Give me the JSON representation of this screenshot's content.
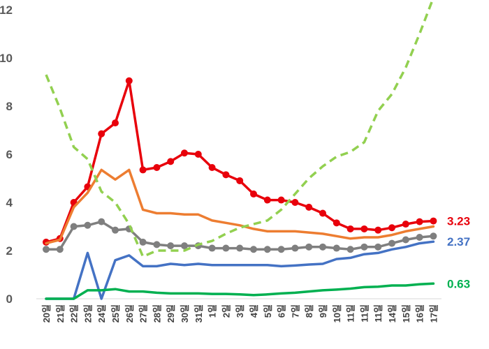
{
  "chart_data": {
    "type": "line",
    "title": "",
    "xlabel": "",
    "ylabel": "",
    "ylim": [
      0,
      12
    ],
    "yticks": [
      "0",
      "2",
      "4",
      "6",
      "8",
      "10",
      "12"
    ],
    "grid": false,
    "legend": "none",
    "categories": [
      "20일",
      "21일",
      "22일",
      "23일",
      "24일",
      "25일",
      "26일",
      "27일",
      "28일",
      "29일",
      "30일",
      "31일",
      "1일",
      "2일",
      "3일",
      "4일",
      "5일",
      "6일",
      "7일",
      "8일",
      "9일",
      "10일",
      "11일",
      "11일",
      "11일",
      "14일",
      "15일",
      "16일",
      "17일"
    ],
    "series": [
      {
        "color": "#e8000b",
        "style": "solid-markers",
        "values": [
          2.35,
          2.5,
          4.0,
          4.65,
          6.85,
          7.3,
          9.05,
          5.35,
          5.45,
          5.7,
          6.05,
          6.0,
          5.45,
          5.15,
          4.9,
          4.35,
          4.1,
          4.1,
          4.0,
          3.8,
          3.55,
          3.15,
          2.9,
          2.9,
          2.85,
          2.95,
          3.1,
          3.2,
          3.23
        ],
        "end_label": "3.23"
      },
      {
        "color": "#ed7d31",
        "style": "solid",
        "values": [
          2.3,
          2.45,
          3.8,
          4.4,
          5.35,
          4.95,
          5.35,
          3.7,
          3.55,
          3.55,
          3.5,
          3.5,
          3.25,
          3.15,
          3.05,
          2.9,
          2.8,
          2.8,
          2.8,
          2.75,
          2.7,
          2.6,
          2.5,
          2.55,
          2.55,
          2.65,
          2.8,
          2.9,
          3.0
        ]
      },
      {
        "color": "#7f7f7f",
        "style": "solid-markers",
        "values": [
          2.05,
          2.05,
          3.0,
          3.05,
          3.2,
          2.85,
          2.9,
          2.35,
          2.25,
          2.2,
          2.2,
          2.2,
          2.1,
          2.1,
          2.1,
          2.05,
          2.05,
          2.05,
          2.1,
          2.15,
          2.15,
          2.1,
          2.05,
          2.15,
          2.15,
          2.3,
          2.45,
          2.55,
          2.6
        ]
      },
      {
        "color": "#4472c4",
        "style": "solid",
        "values": [
          0.0,
          0.0,
          0.0,
          1.9,
          0.0,
          1.6,
          1.8,
          1.35,
          1.35,
          1.45,
          1.4,
          1.45,
          1.4,
          1.4,
          1.4,
          1.4,
          1.4,
          1.35,
          1.38,
          1.42,
          1.45,
          1.65,
          1.7,
          1.85,
          1.9,
          2.05,
          2.15,
          2.3,
          2.37
        ],
        "end_label": "2.37"
      },
      {
        "color": "#00b050",
        "style": "solid",
        "values": [
          0.0,
          0.0,
          0.0,
          0.35,
          0.35,
          0.4,
          0.3,
          0.3,
          0.25,
          0.22,
          0.22,
          0.22,
          0.2,
          0.2,
          0.18,
          0.15,
          0.18,
          0.22,
          0.25,
          0.3,
          0.35,
          0.38,
          0.42,
          0.48,
          0.5,
          0.55,
          0.55,
          0.6,
          0.63
        ],
        "end_label": "0.63"
      },
      {
        "color": "#92d050",
        "style": "dashed",
        "values": [
          9.3,
          7.9,
          6.3,
          5.8,
          4.45,
          4.0,
          3.1,
          1.75,
          2.0,
          2.0,
          2.0,
          2.25,
          2.4,
          2.7,
          2.95,
          3.1,
          3.25,
          3.7,
          4.35,
          5.0,
          5.5,
          5.9,
          6.1,
          6.5,
          7.8,
          8.5,
          9.6,
          11.0,
          12.5
        ]
      }
    ]
  }
}
